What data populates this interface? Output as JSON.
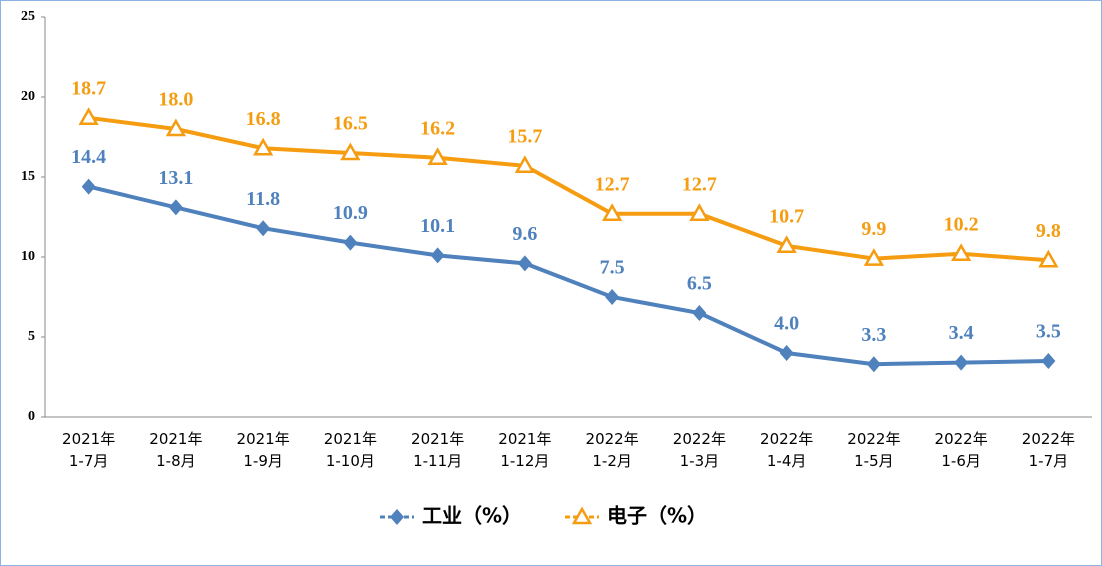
{
  "chart_data": {
    "type": "line",
    "categories": [
      "2021年\n1-7月",
      "2021年\n1-8月",
      "2021年\n1-9月",
      "2021年\n1-10月",
      "2021年\n1-11月",
      "2021年\n1-12月",
      "2022年\n1-2月",
      "2022年\n1-3月",
      "2022年\n1-4月",
      "2022年\n1-5月",
      "2022年\n1-6月",
      "2022年\n1-7月"
    ],
    "series": [
      {
        "name": "工业（%）",
        "color": "#4f81bd",
        "marker": "diamond",
        "values": [
          14.4,
          13.1,
          11.8,
          10.9,
          10.1,
          9.6,
          7.5,
          6.5,
          4.0,
          3.3,
          3.4,
          3.5
        ],
        "value_labels": [
          "14.4",
          "13.1",
          "11.8",
          "10.9",
          "10.1",
          "9.6",
          "7.5",
          "6.5",
          "4.0",
          "3.3",
          "3.4",
          "3.5"
        ]
      },
      {
        "name": "电子（%）",
        "color": "#f59c11",
        "marker": "triangle",
        "values": [
          18.7,
          18.0,
          16.8,
          16.5,
          16.2,
          15.7,
          12.7,
          12.7,
          10.7,
          9.9,
          10.2,
          9.8
        ],
        "value_labels": [
          "18.7",
          "18.0",
          "16.8",
          "16.5",
          "16.2",
          "15.7",
          "12.7",
          "12.7",
          "10.7",
          "9.9",
          "10.2",
          "9.8"
        ]
      }
    ],
    "ylim": [
      0,
      25
    ],
    "yticks": [
      0,
      5,
      10,
      15,
      20,
      25
    ],
    "grid": false,
    "legend": "bottom"
  }
}
